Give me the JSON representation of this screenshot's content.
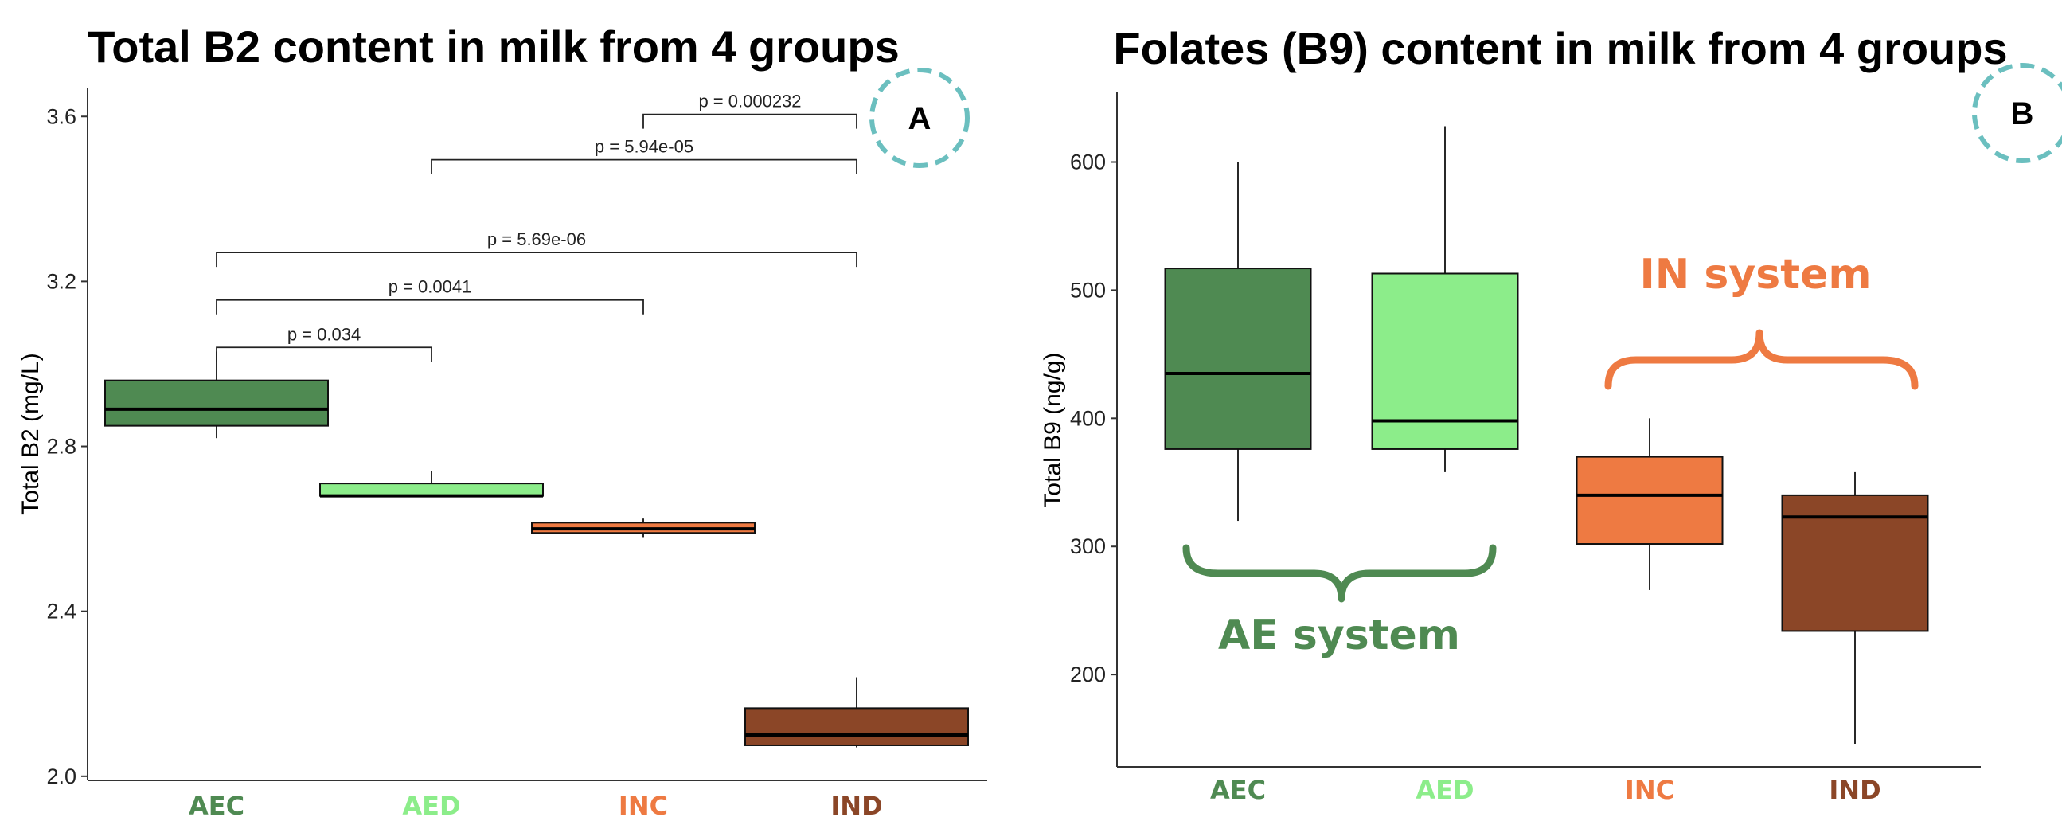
{
  "colors": {
    "AEC": "#4f8a52",
    "AED": "#8ced8a",
    "INC": "#ee7a42",
    "IND": "#8b4627",
    "badge_ring": "#6bbfbf",
    "ae_system": "#4f8a52",
    "in_system": "#ee7a42"
  },
  "chart_data": [
    {
      "panel": "A",
      "type": "box",
      "title": "Total B2 content in milk from 4 groups",
      "ylabel": "Total B2 (mg/L)",
      "xlabel": "",
      "ylim": [
        1.99,
        3.67
      ],
      "yticks": [
        2.0,
        2.4,
        2.8,
        3.2,
        3.6
      ],
      "ytick_labels": [
        "2.0",
        "2.4",
        "2.8",
        "3.2",
        "3.6"
      ],
      "categories": [
        "AEC",
        "AED",
        "INC",
        "IND"
      ],
      "boxes": [
        {
          "group": "AEC",
          "min": 2.82,
          "q1": 2.85,
          "median": 2.89,
          "q3": 2.96,
          "max": 3.03
        },
        {
          "group": "AED",
          "min": 2.68,
          "q1": 2.68,
          "median": 2.68,
          "q3": 2.71,
          "max": 2.74
        },
        {
          "group": "INC",
          "min": 2.58,
          "q1": 2.59,
          "median": 2.6,
          "q3": 2.615,
          "max": 2.625
        },
        {
          "group": "IND",
          "min": 2.07,
          "q1": 2.075,
          "median": 2.1,
          "q3": 2.165,
          "max": 2.24
        }
      ],
      "comparisons": [
        {
          "from": "AEC",
          "to": "AED",
          "level": 3.04,
          "label": "p = 0.034"
        },
        {
          "from": "AEC",
          "to": "INC",
          "level": 3.155,
          "label": "p = 0.0041"
        },
        {
          "from": "AEC",
          "to": "IND",
          "level": 3.27,
          "label": "p = 5.69e-06"
        },
        {
          "from": "AED",
          "to": "IND",
          "level": 3.495,
          "label": "p = 5.94e-05"
        },
        {
          "from": "INC",
          "to": "IND",
          "level": 3.605,
          "label": "p = 0.000232"
        }
      ],
      "badge": "A"
    },
    {
      "panel": "B",
      "type": "box",
      "title": "Folates (B9) content in milk from 4 groups",
      "ylabel": "Total B9 (ng/g)",
      "xlabel": "",
      "ylim": [
        128,
        655
      ],
      "yticks": [
        200,
        300,
        400,
        500,
        600
      ],
      "ytick_labels": [
        "200",
        "300",
        "400",
        "500",
        "600"
      ],
      "categories": [
        "AEC",
        "AED",
        "INC",
        "IND"
      ],
      "boxes": [
        {
          "group": "AEC",
          "min": 320,
          "q1": 376,
          "median": 435,
          "q3": 517,
          "max": 600
        },
        {
          "group": "AED",
          "min": 358,
          "q1": 376,
          "median": 398,
          "q3": 513,
          "max": 628
        },
        {
          "group": "INC",
          "min": 266,
          "q1": 302,
          "median": 340,
          "q3": 370,
          "max": 400
        },
        {
          "group": "IND",
          "min": 146,
          "q1": 234,
          "median": 323,
          "q3": 340,
          "max": 358
        }
      ],
      "annotations": [
        {
          "label": "AE system",
          "groups": [
            "AEC",
            "AED"
          ],
          "brace": "below"
        },
        {
          "label": "IN system",
          "groups": [
            "INC",
            "IND"
          ],
          "brace": "above"
        }
      ],
      "badge": "B"
    }
  ]
}
